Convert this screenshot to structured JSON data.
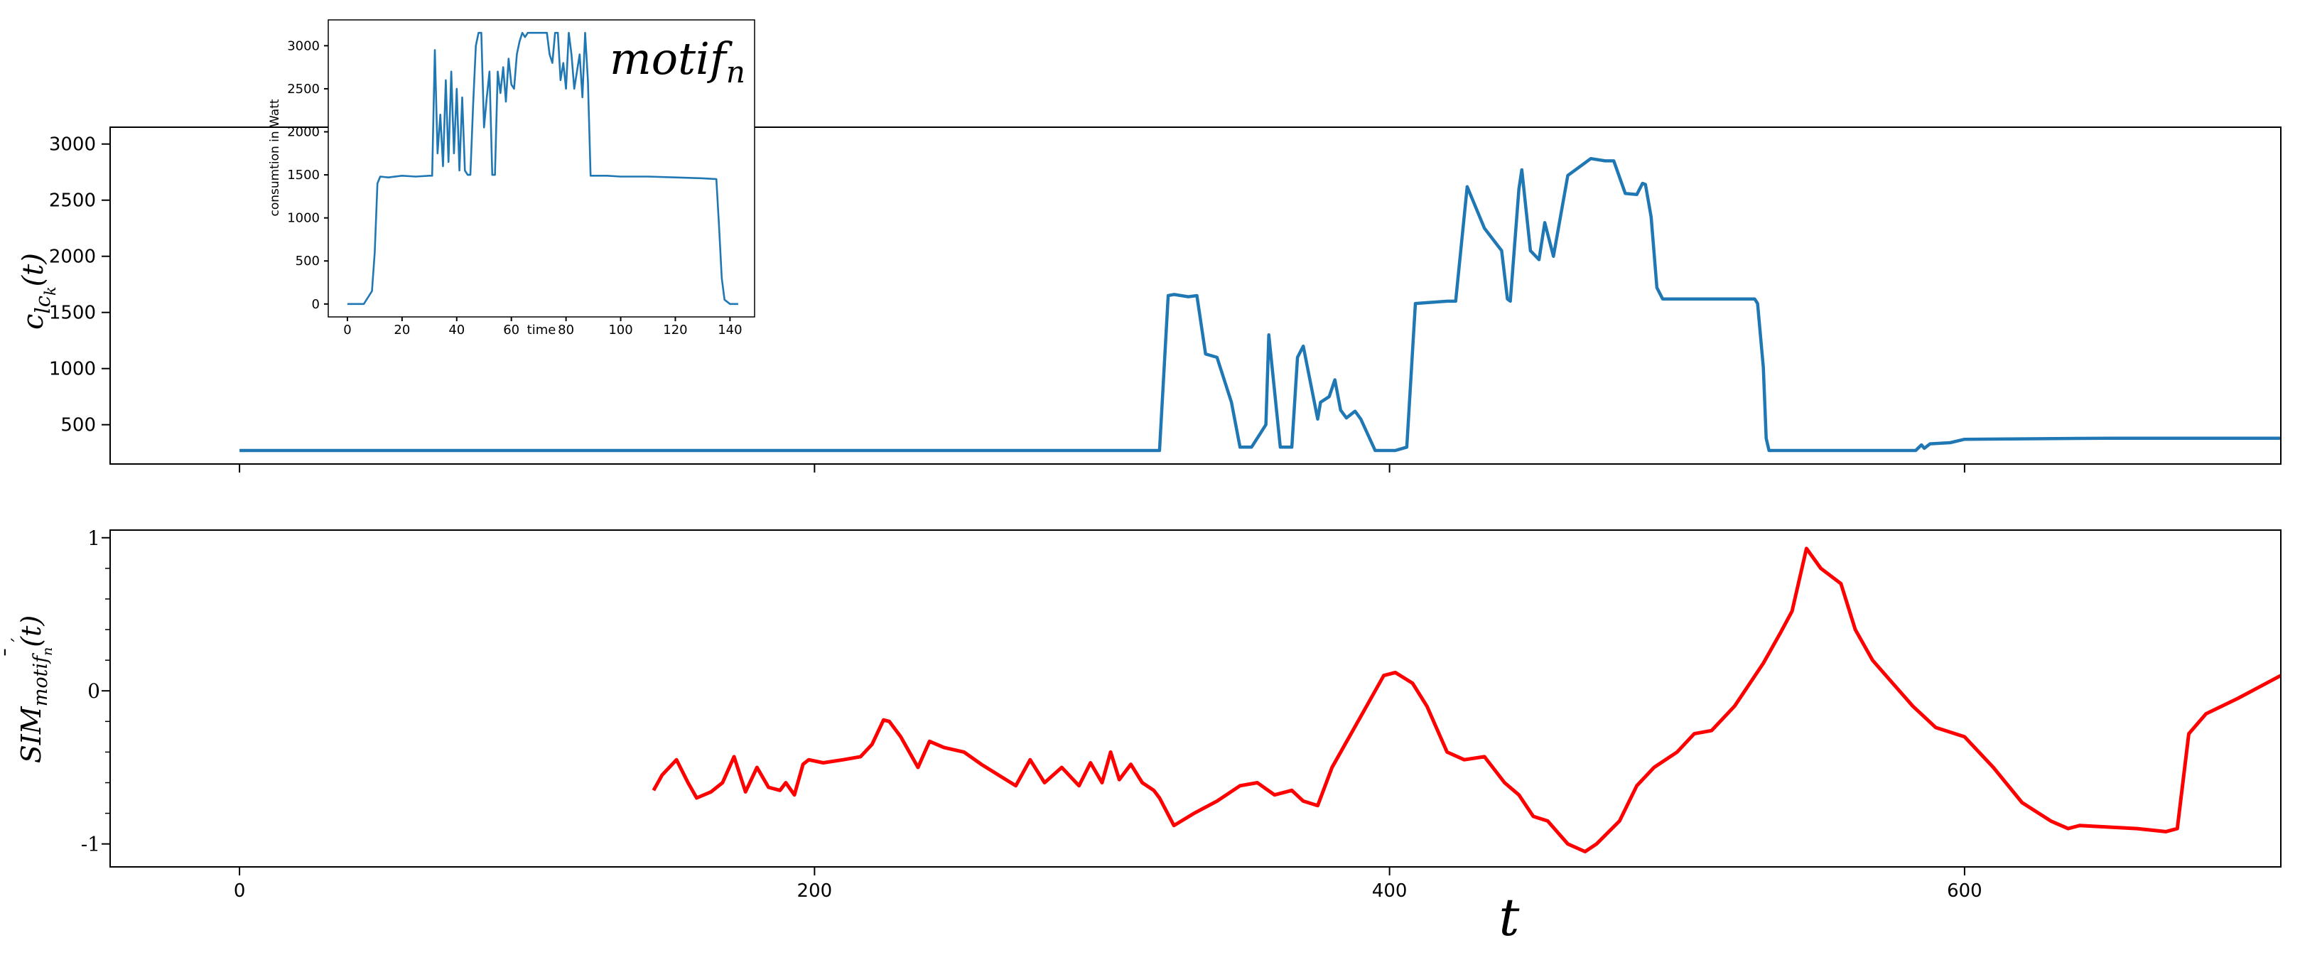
{
  "chart_data": [
    {
      "type": "line",
      "ylabel": "c_{lc_k}(t)",
      "xlim": [
        -45,
        710
      ],
      "ylim": [
        150,
        3150
      ],
      "xticks": [
        0,
        200,
        400,
        600
      ],
      "yticks": [
        500,
        1000,
        1500,
        2000,
        2500,
        3000
      ],
      "line_color": "#1f77b4",
      "series": [
        {
          "x": [
            0,
            100,
            200,
            300,
            320,
            323,
            325,
            330,
            333,
            336,
            340,
            345,
            348,
            352,
            357,
            358,
            362,
            364,
            366,
            368,
            370,
            375,
            376,
            379,
            381,
            383,
            385,
            388,
            390,
            395,
            400,
            402,
            406,
            409,
            420,
            423,
            427,
            433,
            439,
            441,
            442,
            445,
            446,
            449,
            452,
            454,
            457,
            462,
            470,
            475,
            478,
            482,
            486,
            488,
            489,
            491,
            493,
            495,
            505,
            527,
            528,
            530,
            531,
            532,
            540,
            580,
            583,
            585,
            586,
            588,
            595,
            600,
            650,
            710
          ],
          "y": [
            270,
            270,
            270,
            270,
            270,
            1650,
            1660,
            1640,
            1650,
            1130,
            1100,
            700,
            300,
            300,
            500,
            1300,
            300,
            300,
            300,
            1100,
            1200,
            550,
            700,
            750,
            900,
            630,
            560,
            620,
            550,
            270,
            270,
            270,
            300,
            1580,
            1600,
            1600,
            2620,
            2250,
            2050,
            1620,
            1600,
            2600,
            2770,
            2050,
            1970,
            2300,
            2000,
            2720,
            2870,
            2850,
            2850,
            2560,
            2550,
            2650,
            2640,
            2350,
            1720,
            1620,
            1620,
            1620,
            1580,
            1010,
            380,
            270,
            270,
            270,
            270,
            320,
            290,
            330,
            340,
            370,
            380,
            380
          ]
        }
      ]
    },
    {
      "type": "line",
      "xlabel": "t",
      "ylabel": "SI̅M_{motif_n}(t)",
      "xlim": [
        -45,
        710
      ],
      "ylim": [
        -1.15,
        1.05
      ],
      "xticks": [
        0,
        200,
        400,
        600
      ],
      "xtick_labels": [
        "0",
        "200",
        "400",
        "600"
      ],
      "yticks": [
        -1,
        0,
        1
      ],
      "ytick_labels": [
        "-1",
        "0",
        "1"
      ],
      "line_color": "#ff0000",
      "series": [
        {
          "x": [
            144,
            147,
            152,
            156,
            159,
            164,
            168,
            172,
            176,
            180,
            184,
            188,
            190,
            193,
            196,
            198,
            203,
            210,
            216,
            220,
            224,
            226,
            230,
            236,
            240,
            245,
            252,
            258,
            264,
            270,
            275,
            280,
            286,
            292,
            296,
            300,
            303,
            306,
            310,
            314,
            318,
            320,
            325,
            332,
            340,
            348,
            354,
            360,
            366,
            370,
            375,
            380,
            392,
            398,
            402,
            408,
            413,
            420,
            426,
            433,
            440,
            445,
            450,
            455,
            462,
            468,
            472,
            480,
            486,
            492,
            500,
            506,
            512,
            520,
            530,
            536,
            540,
            545,
            550,
            557,
            562,
            568,
            575,
            582,
            590,
            600,
            610,
            620,
            630,
            636,
            640,
            660,
            670,
            674,
            678,
            684,
            695,
            710
          ],
          "y": [
            -0.65,
            -0.55,
            -0.45,
            -0.6,
            -0.7,
            -0.66,
            -0.6,
            -0.43,
            -0.66,
            -0.5,
            -0.63,
            -0.65,
            -0.6,
            -0.68,
            -0.48,
            -0.45,
            -0.47,
            -0.45,
            -0.43,
            -0.35,
            -0.19,
            -0.2,
            -0.3,
            -0.5,
            -0.33,
            -0.37,
            -0.4,
            -0.48,
            -0.55,
            -0.62,
            -0.45,
            -0.6,
            -0.5,
            -0.62,
            -0.47,
            -0.6,
            -0.4,
            -0.58,
            -0.48,
            -0.6,
            -0.65,
            -0.7,
            -0.88,
            -0.8,
            -0.72,
            -0.62,
            -0.6,
            -0.68,
            -0.65,
            -0.72,
            -0.75,
            -0.5,
            -0.1,
            0.1,
            0.12,
            0.05,
            -0.1,
            -0.4,
            -0.45,
            -0.43,
            -0.6,
            -0.68,
            -0.82,
            -0.85,
            -1.0,
            -1.05,
            -1.0,
            -0.85,
            -0.62,
            -0.5,
            -0.4,
            -0.28,
            -0.26,
            -0.1,
            0.18,
            0.38,
            0.52,
            0.93,
            0.8,
            0.7,
            0.4,
            0.2,
            0.05,
            -0.1,
            -0.24,
            -0.3,
            -0.5,
            -0.73,
            -0.85,
            -0.9,
            -0.88,
            -0.9,
            -0.92,
            -0.9,
            -0.28,
            -0.15,
            -0.05,
            0.1
          ]
        }
      ]
    },
    {
      "type": "line",
      "title": "motif_n",
      "xlabel": "time",
      "ylabel": "consumtion in Watt",
      "xlim": [
        -7,
        149
      ],
      "ylim": [
        -150,
        3300
      ],
      "xticks": [
        0,
        20,
        40,
        60,
        80,
        100,
        120,
        140
      ],
      "yticks": [
        0,
        500,
        1000,
        1500,
        2000,
        2500,
        3000
      ],
      "line_color": "#1f77b4",
      "series": [
        {
          "x": [
            0,
            6,
            9,
            10,
            11,
            12,
            15,
            20,
            25,
            30,
            31,
            32,
            33,
            34,
            35,
            36,
            37,
            38,
            39,
            40,
            41,
            42,
            43,
            44,
            45,
            46,
            47,
            48,
            49,
            50,
            51,
            52,
            53,
            54,
            55,
            56,
            57,
            58,
            59,
            60,
            61,
            62,
            63,
            64,
            65,
            66,
            67,
            68,
            69,
            70,
            71,
            72,
            73,
            74,
            75,
            76,
            77,
            78,
            79,
            80,
            81,
            82,
            83,
            84,
            85,
            86,
            87,
            88,
            89,
            95,
            100,
            110,
            120,
            130,
            135,
            136,
            137,
            138,
            140,
            143
          ],
          "y": [
            0,
            0,
            150,
            600,
            1400,
            1480,
            1470,
            1490,
            1480,
            1490,
            1490,
            2950,
            1750,
            2200,
            1600,
            2600,
            1650,
            2700,
            1750,
            2500,
            1550,
            2400,
            1550,
            1500,
            1500,
            2300,
            3000,
            3150,
            3150,
            2050,
            2400,
            2700,
            1500,
            1500,
            2700,
            2450,
            2750,
            2350,
            2850,
            2550,
            2500,
            2900,
            3050,
            3150,
            3100,
            3150,
            3150,
            3150,
            3150,
            3150,
            3150,
            3150,
            3150,
            2900,
            2800,
            3150,
            3150,
            2600,
            2800,
            2500,
            3150,
            2900,
            2500,
            2700,
            2900,
            2400,
            3150,
            2600,
            1490,
            1490,
            1480,
            1480,
            1470,
            1460,
            1450,
            900,
            300,
            50,
            0,
            0
          ]
        }
      ]
    }
  ]
}
